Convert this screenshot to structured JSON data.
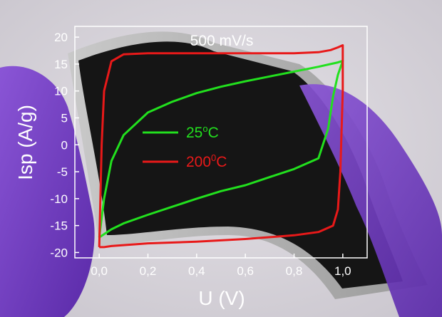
{
  "chart_data": {
    "type": "line",
    "title": "500 mV/s",
    "xlabel": "U (V)",
    "ylabel": "Isp (A/g)",
    "xlim": [
      -0.1,
      1.1
    ],
    "ylim": [
      -21,
      22
    ],
    "xticks": [
      "0,0",
      "0,2",
      "0,4",
      "0,6",
      "0,8",
      "1,0"
    ],
    "xtick_values": [
      0.0,
      0.2,
      0.4,
      0.6,
      0.8,
      1.0
    ],
    "yticks": [
      "-20",
      "-15",
      "-10",
      "-5",
      "0",
      "5",
      "10",
      "15",
      "20"
    ],
    "ytick_values": [
      -20,
      -15,
      -10,
      -5,
      0,
      5,
      10,
      15,
      20
    ],
    "grid": false,
    "legend": {
      "position": "center-left",
      "entries": [
        {
          "base": "25",
          "sup": "o",
          "unit": "C",
          "color": "#22e01e"
        },
        {
          "base": "200",
          "sup": "0",
          "unit": "C",
          "color": "#e81919"
        }
      ]
    },
    "series": [
      {
        "name": "25ºC",
        "color": "#22e01e",
        "x": [
          0.0,
          0.02,
          0.05,
          0.1,
          0.2,
          0.3,
          0.4,
          0.5,
          0.6,
          0.7,
          0.8,
          0.9,
          0.95,
          0.98,
          1.0,
          0.98,
          0.96,
          0.94,
          0.9,
          0.8,
          0.7,
          0.6,
          0.5,
          0.4,
          0.3,
          0.2,
          0.1,
          0.05,
          0.0
        ],
        "y": [
          -17.2,
          -10.0,
          -3.0,
          1.8,
          6.0,
          8.0,
          9.6,
          10.8,
          11.8,
          12.7,
          13.6,
          14.5,
          15.0,
          15.3,
          15.6,
          13.0,
          9.0,
          3.0,
          -2.5,
          -4.5,
          -6.0,
          -7.5,
          -8.6,
          -10.0,
          -11.5,
          -13.0,
          -14.6,
          -15.7,
          -17.2
        ]
      },
      {
        "name": "200ºC",
        "color": "#e81919",
        "x": [
          0.0,
          0.01,
          0.02,
          0.05,
          0.1,
          0.2,
          0.4,
          0.6,
          0.8,
          0.9,
          0.95,
          0.98,
          1.0,
          1.0,
          0.99,
          0.98,
          0.96,
          0.9,
          0.8,
          0.6,
          0.4,
          0.2,
          0.05,
          0.02,
          0.0
        ],
        "y": [
          -19.0,
          0.0,
          10.0,
          15.5,
          16.8,
          17.0,
          17.0,
          17.0,
          17.0,
          17.2,
          17.6,
          18.1,
          18.5,
          10.0,
          -5.0,
          -12.0,
          -15.0,
          -16.2,
          -16.8,
          -17.5,
          -18.0,
          -18.3,
          -18.8,
          -19.0,
          -19.0
        ]
      }
    ]
  }
}
